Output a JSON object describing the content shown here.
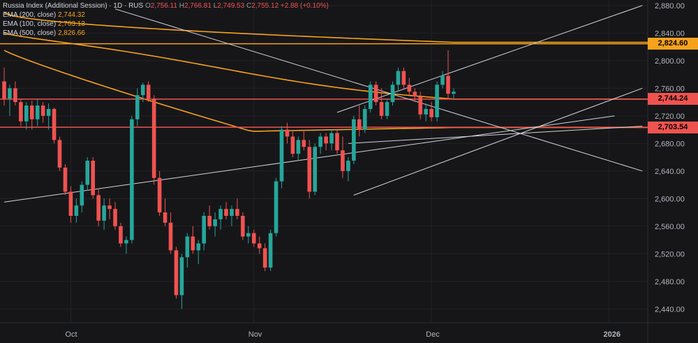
{
  "legend": {
    "title": "Russia Index (Additional Session) · 1D · RUS",
    "ohlc": {
      "o_label": "O",
      "o": "2,756.11",
      "h_label": "H",
      "h": "2,766.81",
      "l_label": "L",
      "l": "2,749.53",
      "c_label": "C",
      "c": "2,755.12",
      "chg": "+2.88 (+0.10%)"
    },
    "ema": [
      {
        "label": "EMA (200, close)",
        "value": "2,744.32"
      },
      {
        "label": "EMA (100, close)",
        "value": "2,703.13"
      },
      {
        "label": "EMA (500, close)",
        "value": "2,826.66"
      }
    ]
  },
  "price_tags": [
    {
      "value": "2,824.60",
      "price": 2824.6,
      "color": "#f7a21c"
    },
    {
      "value": "2,744.24",
      "price": 2744.24,
      "color": "#ef5350"
    },
    {
      "value": "2,703.54",
      "price": 2703.54,
      "color": "#ef5350"
    }
  ],
  "colors": {
    "up": "#26a69a",
    "down": "#ef5350",
    "ema": "#f7a21c",
    "hline_red": "#ef5350",
    "hline_orange": "#f7a21c",
    "trend": "#d1d4dc"
  },
  "chart_data": {
    "type": "candlestick",
    "ylim": [
      2420,
      2890
    ],
    "y_ticks": [
      "2,440.00",
      "2,480.00",
      "2,520.00",
      "2,560.00",
      "2,600.00",
      "2,640.00",
      "2,680.00",
      "2,720.00",
      "2,760.00",
      "2,800.00",
      "2,840.00",
      "2,880.00"
    ],
    "y_tick_values": [
      2440,
      2480,
      2520,
      2560,
      2600,
      2640,
      2680,
      2720,
      2760,
      2800,
      2840,
      2880
    ],
    "x_labels": [
      "Oct",
      "Nov",
      "Dec",
      "2026"
    ],
    "x_label_index": [
      12,
      45,
      77,
      109
    ],
    "horizontal_levels": [
      2824.6,
      2744.24,
      2703.54
    ],
    "candles": [
      [
        2770,
        2790,
        2735,
        2745
      ],
      [
        2745,
        2765,
        2720,
        2760
      ],
      [
        2760,
        2770,
        2735,
        2740
      ],
      [
        2740,
        2745,
        2705,
        2712
      ],
      [
        2712,
        2740,
        2700,
        2735
      ],
      [
        2735,
        2742,
        2700,
        2715
      ],
      [
        2715,
        2745,
        2705,
        2735
      ],
      [
        2735,
        2740,
        2710,
        2720
      ],
      [
        2720,
        2738,
        2700,
        2730
      ],
      [
        2730,
        2732,
        2680,
        2685
      ],
      [
        2685,
        2690,
        2640,
        2645
      ],
      [
        2645,
        2650,
        2605,
        2610
      ],
      [
        2610,
        2618,
        2565,
        2575
      ],
      [
        2575,
        2600,
        2565,
        2590
      ],
      [
        2590,
        2625,
        2580,
        2620
      ],
      [
        2620,
        2660,
        2612,
        2655
      ],
      [
        2655,
        2660,
        2600,
        2605
      ],
      [
        2605,
        2615,
        2560,
        2568
      ],
      [
        2568,
        2600,
        2555,
        2590
      ],
      [
        2590,
        2600,
        2570,
        2585
      ],
      [
        2585,
        2595,
        2555,
        2560
      ],
      [
        2560,
        2565,
        2530,
        2535
      ],
      [
        2535,
        2545,
        2520,
        2540
      ],
      [
        2540,
        2720,
        2535,
        2715
      ],
      [
        2715,
        2760,
        2705,
        2750
      ],
      [
        2750,
        2768,
        2740,
        2765
      ],
      [
        2765,
        2770,
        2740,
        2745
      ],
      [
        2745,
        2750,
        2620,
        2630
      ],
      [
        2630,
        2640,
        2575,
        2580
      ],
      [
        2580,
        2600,
        2560,
        2565
      ],
      [
        2565,
        2580,
        2520,
        2525
      ],
      [
        2525,
        2530,
        2455,
        2460
      ],
      [
        2460,
        2520,
        2440,
        2515
      ],
      [
        2515,
        2550,
        2500,
        2545
      ],
      [
        2545,
        2560,
        2520,
        2525
      ],
      [
        2525,
        2540,
        2505,
        2535
      ],
      [
        2535,
        2580,
        2525,
        2575
      ],
      [
        2575,
        2590,
        2555,
        2560
      ],
      [
        2560,
        2580,
        2545,
        2570
      ],
      [
        2570,
        2590,
        2555,
        2585
      ],
      [
        2585,
        2595,
        2570,
        2575
      ],
      [
        2575,
        2590,
        2560,
        2585
      ],
      [
        2585,
        2600,
        2570,
        2575
      ],
      [
        2575,
        2580,
        2540,
        2545
      ],
      [
        2545,
        2560,
        2535,
        2550
      ],
      [
        2550,
        2555,
        2530,
        2535
      ],
      [
        2535,
        2545,
        2520,
        2528
      ],
      [
        2528,
        2535,
        2495,
        2500
      ],
      [
        2500,
        2555,
        2495,
        2550
      ],
      [
        2550,
        2630,
        2545,
        2625
      ],
      [
        2625,
        2705,
        2615,
        2700
      ],
      [
        2700,
        2710,
        2680,
        2690
      ],
      [
        2690,
        2700,
        2660,
        2665
      ],
      [
        2665,
        2690,
        2655,
        2685
      ],
      [
        2685,
        2700,
        2670,
        2675
      ],
      [
        2675,
        2685,
        2600,
        2610
      ],
      [
        2610,
        2680,
        2605,
        2675
      ],
      [
        2675,
        2695,
        2665,
        2690
      ],
      [
        2690,
        2695,
        2670,
        2680
      ],
      [
        2680,
        2700,
        2670,
        2695
      ],
      [
        2695,
        2700,
        2665,
        2670
      ],
      [
        2670,
        2690,
        2630,
        2640
      ],
      [
        2640,
        2660,
        2625,
        2655
      ],
      [
        2655,
        2720,
        2650,
        2715
      ],
      [
        2715,
        2735,
        2690,
        2700
      ],
      [
        2700,
        2735,
        2695,
        2730
      ],
      [
        2730,
        2770,
        2725,
        2765
      ],
      [
        2765,
        2770,
        2735,
        2740
      ],
      [
        2740,
        2760,
        2715,
        2720
      ],
      [
        2720,
        2745,
        2715,
        2740
      ],
      [
        2740,
        2770,
        2735,
        2765
      ],
      [
        2765,
        2790,
        2755,
        2785
      ],
      [
        2785,
        2790,
        2760,
        2765
      ],
      [
        2765,
        2775,
        2750,
        2755
      ],
      [
        2755,
        2760,
        2740,
        2748
      ],
      [
        2748,
        2755,
        2715,
        2722
      ],
      [
        2722,
        2738,
        2712,
        2730
      ],
      [
        2730,
        2740,
        2712,
        2718
      ],
      [
        2718,
        2770,
        2712,
        2765
      ],
      [
        2765,
        2785,
        2760,
        2778
      ],
      [
        2778,
        2815,
        2745,
        2752
      ],
      [
        2752,
        2760,
        2745,
        2755
      ]
    ],
    "ema_series": [
      {
        "name": "EMA (500, close)",
        "values_start": 2870,
        "values_end": 2826.66
      },
      {
        "name": "EMA (200, close)",
        "values_start": 2840,
        "values_end": 2744.32
      },
      {
        "name": "EMA (100, close)",
        "values_start": 2815,
        "values_end": 2703.13
      }
    ]
  }
}
